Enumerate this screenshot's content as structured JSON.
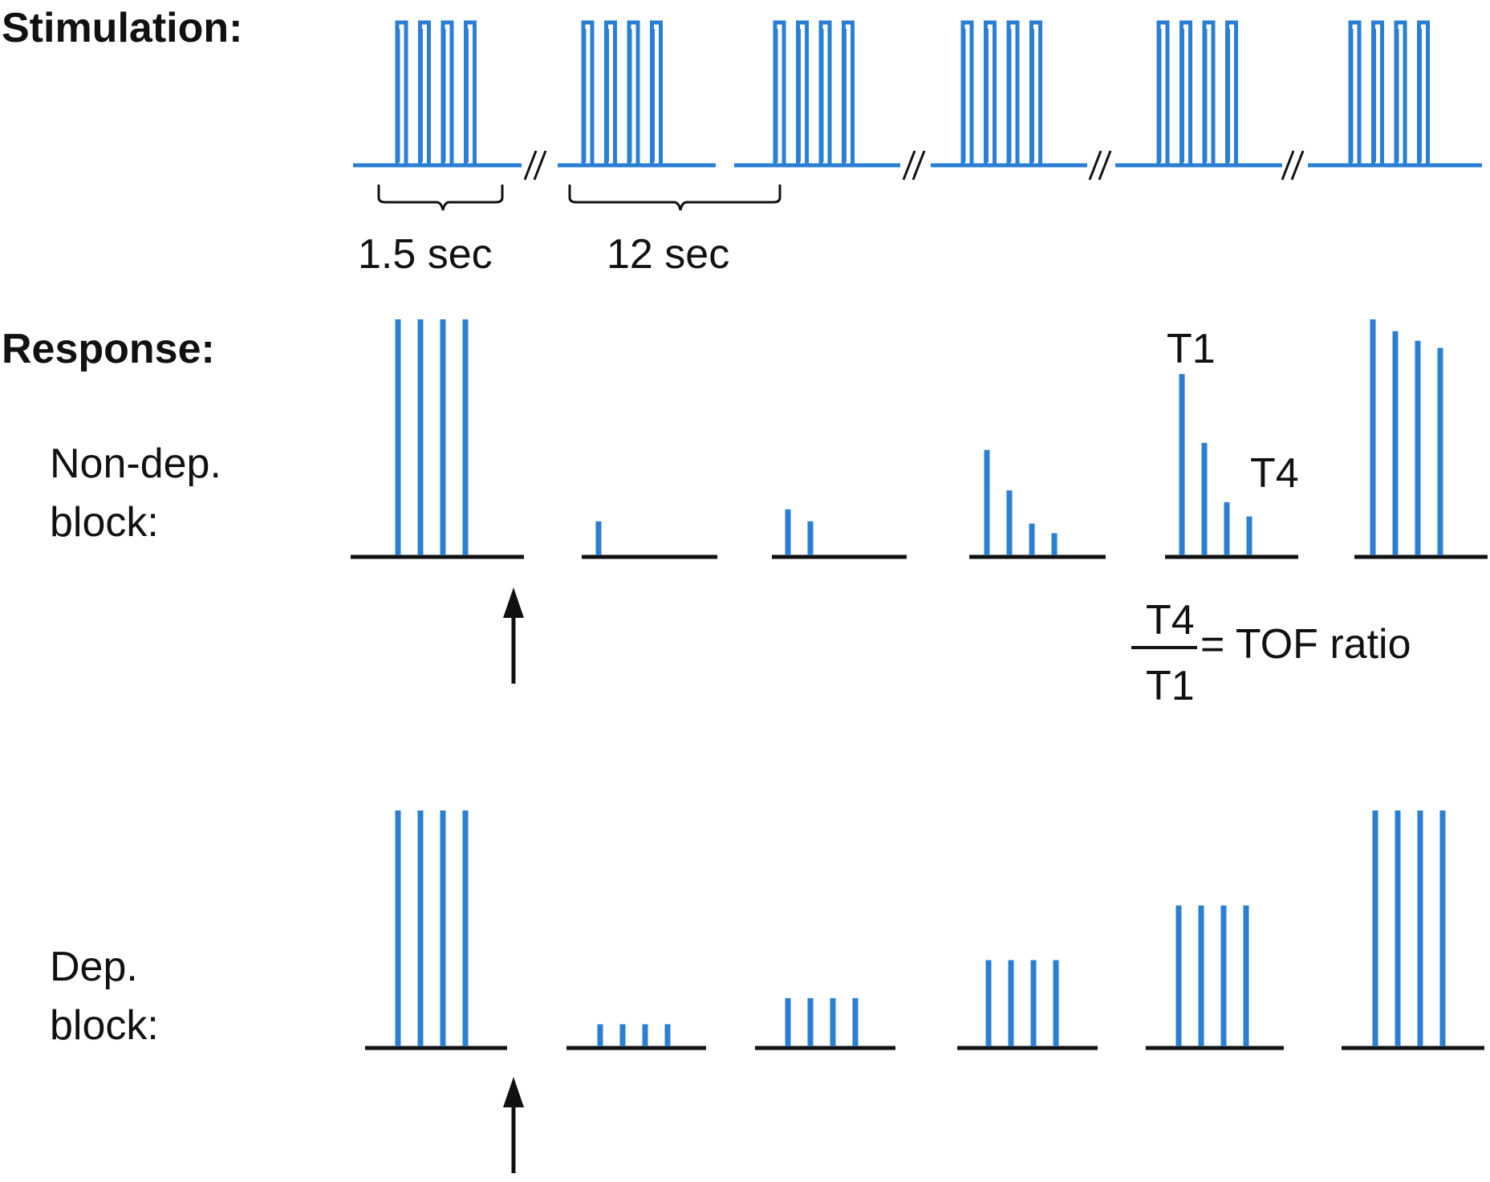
{
  "labels": {
    "stimulation": "Stimulation:",
    "response": "Response:",
    "nondep_line1": "Non-dep.",
    "nondep_line2": "block:",
    "dep_line1": "Dep.",
    "dep_line2": "block:",
    "interval_short": "1.5 sec",
    "interval_long": "12 sec",
    "t1": "T1",
    "t4": "T4",
    "ratio_num": "T4",
    "ratio_den": "T1",
    "ratio_eq": "= TOF ratio"
  },
  "colors": {
    "signal": "#2a7fd4",
    "ink": "#111111"
  },
  "trains": 6,
  "stimuli_per_train": 4,
  "responses": {
    "nondepolarizing": [
      [
        1.0,
        1.0,
        1.0,
        1.0
      ],
      [
        0.15,
        0,
        0,
        0
      ],
      [
        0.2,
        0.15,
        0,
        0
      ],
      [
        0.45,
        0.28,
        0.14,
        0.1
      ],
      [
        0.77,
        0.48,
        0.23,
        0.17
      ],
      [
        1.0,
        0.95,
        0.91,
        0.88
      ]
    ],
    "depolarizing": [
      [
        1.0,
        1.0,
        1.0,
        1.0
      ],
      [
        0.1,
        0.1,
        0.1,
        0.1
      ],
      [
        0.21,
        0.21,
        0.21,
        0.21
      ],
      [
        0.37,
        0.37,
        0.37,
        0.37
      ],
      [
        0.6,
        0.6,
        0.6,
        0.6
      ],
      [
        1.0,
        1.0,
        1.0,
        1.0
      ]
    ]
  }
}
